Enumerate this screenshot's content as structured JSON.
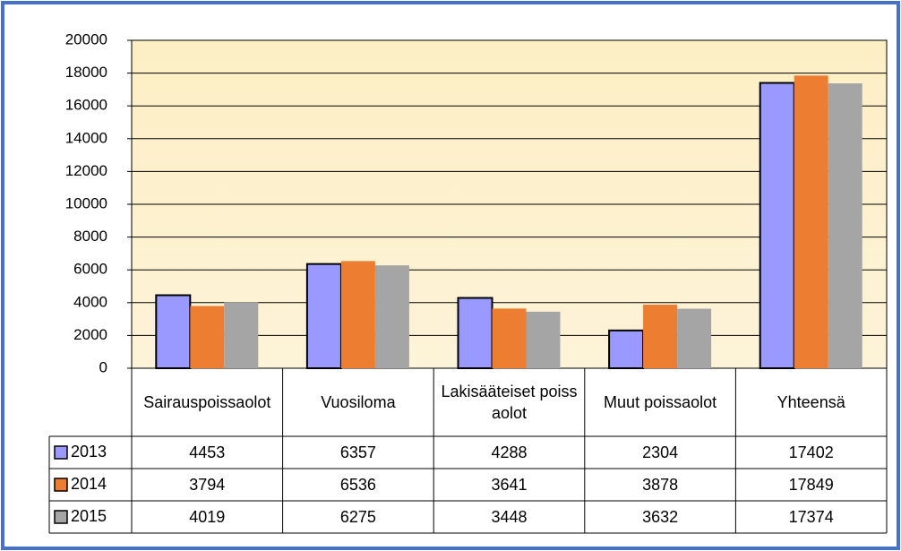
{
  "chart_data": {
    "type": "bar",
    "categories": [
      "Sairauspoissaolot",
      "Vuosiloma",
      "Lakisääteiset poissaolot",
      "Muut poissaolot",
      "Yhteensä"
    ],
    "series": [
      {
        "name": "2013",
        "color": "#9999ff",
        "values": [
          4453,
          6357,
          4288,
          2304,
          17402
        ]
      },
      {
        "name": "2014",
        "color": "#ed7d31",
        "values": [
          3794,
          6536,
          3641,
          3878,
          17849
        ]
      },
      {
        "name": "2015",
        "color": "#a5a5a5",
        "values": [
          4019,
          6275,
          3448,
          3632,
          17374
        ]
      }
    ],
    "ylim": [
      0,
      20000
    ],
    "yticks": [
      0,
      2000,
      4000,
      6000,
      8000,
      10000,
      12000,
      14000,
      16000,
      18000,
      20000
    ],
    "grid": true
  }
}
